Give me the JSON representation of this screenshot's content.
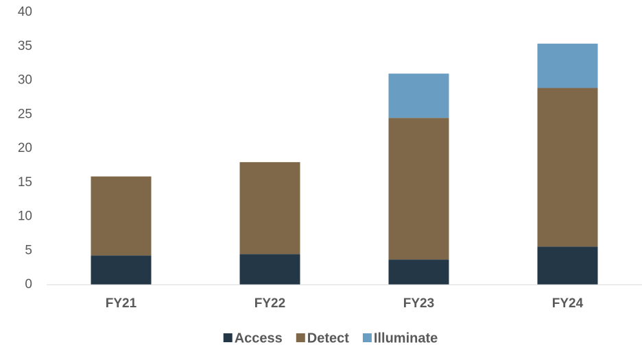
{
  "chart_data": {
    "type": "stacked_bar",
    "categories": [
      "FY21",
      "FY22",
      "FY23",
      "FY24"
    ],
    "series": [
      {
        "name": "Access",
        "color": "#233746",
        "values": [
          4.3,
          4.5,
          3.7,
          5.6
        ]
      },
      {
        "name": "Detect",
        "color": "#7f6749",
        "values": [
          11.6,
          13.5,
          20.8,
          23.3
        ]
      },
      {
        "name": "Illuminate",
        "color": "#6a9dc2",
        "values": [
          0,
          0,
          6.5,
          6.5
        ]
      }
    ],
    "ylim": [
      0,
      40
    ],
    "yticks": [
      0,
      5,
      10,
      15,
      20,
      25,
      30,
      35,
      40
    ],
    "grid": false,
    "legend": "bottom"
  }
}
